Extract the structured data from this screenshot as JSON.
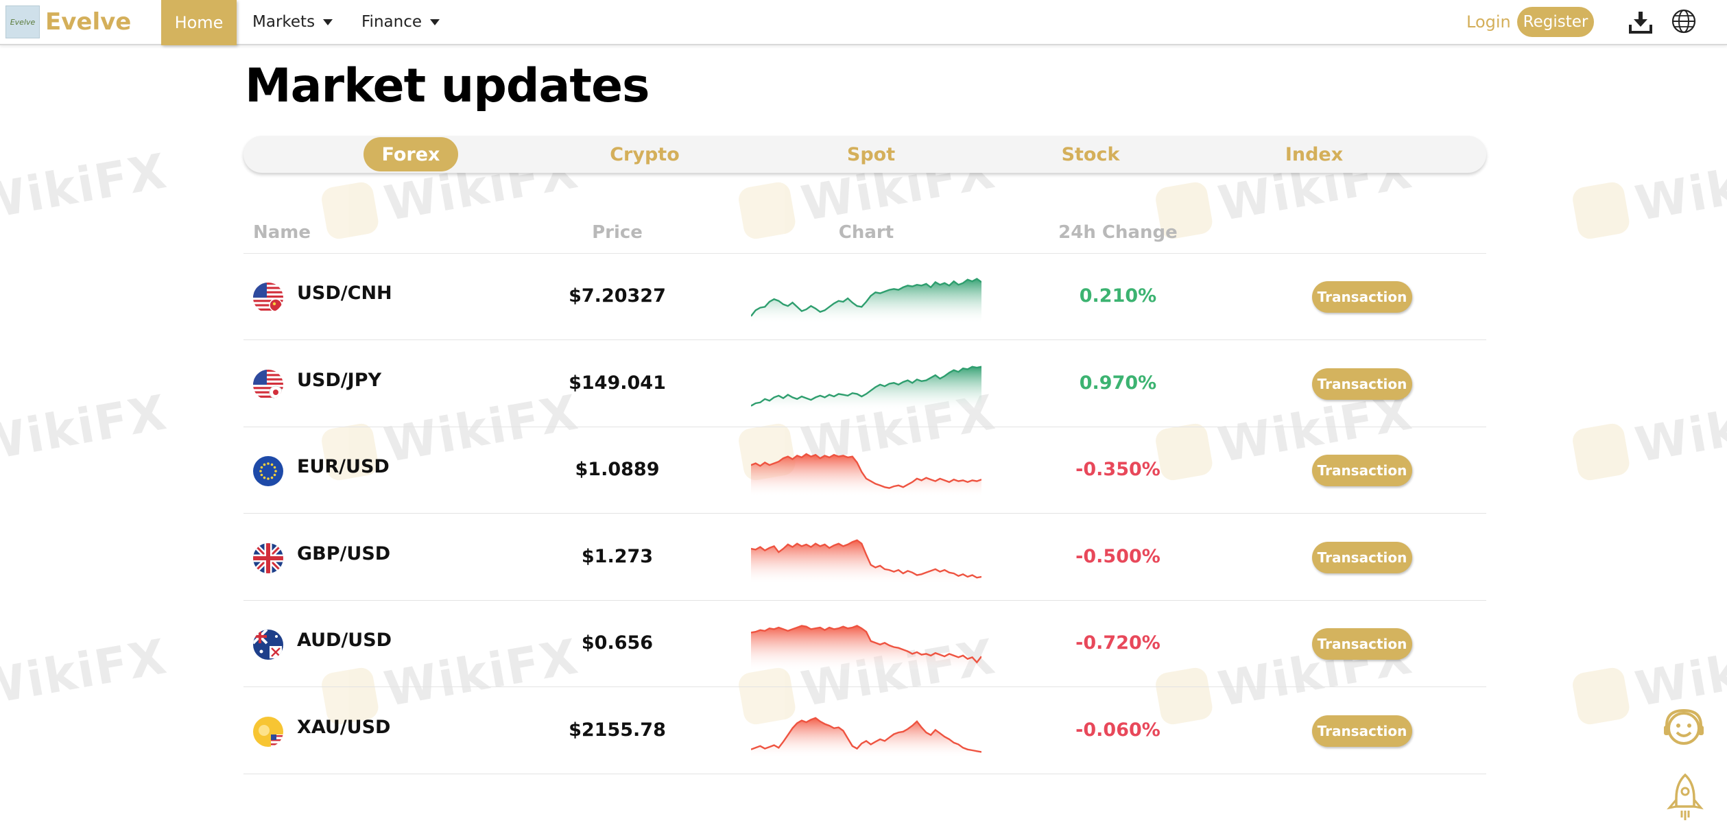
{
  "brand": {
    "name": "Evelve",
    "logo_text": "Evelve"
  },
  "nav": {
    "home": "Home",
    "markets": "Markets",
    "finance": "Finance",
    "login": "Login",
    "register": "Register"
  },
  "watermark": "WikiFX",
  "page_title": "Market updates",
  "tabs": [
    "Forex",
    "Crypto",
    "Spot",
    "Stock",
    "Index"
  ],
  "active_tab": "Forex",
  "table": {
    "headers": {
      "name": "Name",
      "price": "Price",
      "chart": "Chart",
      "change": "24h Change"
    },
    "button_label": "Transaction",
    "rows": [
      {
        "pair": "USD/CNH",
        "price": "$7.20327",
        "change": "0.210%",
        "direction": "up",
        "flag": "us-cn",
        "spark": [
          0.08,
          0.22,
          0.28,
          0.3,
          0.42,
          0.48,
          0.44,
          0.36,
          0.32,
          0.4,
          0.3,
          0.2,
          0.24,
          0.32,
          0.26,
          0.18,
          0.22,
          0.3,
          0.38,
          0.44,
          0.42,
          0.5,
          0.4,
          0.32,
          0.3,
          0.42,
          0.56,
          0.64,
          0.62,
          0.66,
          0.7,
          0.72,
          0.7,
          0.76,
          0.8,
          0.78,
          0.82,
          0.8,
          0.84,
          0.76,
          0.88,
          0.82,
          0.86,
          0.8,
          0.9,
          0.82,
          0.86,
          0.94,
          0.9,
          0.96,
          0.88
        ]
      },
      {
        "pair": "USD/JPY",
        "price": "$149.041",
        "change": "0.970%",
        "direction": "up",
        "flag": "us-jp",
        "spark": [
          0.02,
          0.08,
          0.1,
          0.18,
          0.14,
          0.22,
          0.26,
          0.2,
          0.28,
          0.22,
          0.18,
          0.24,
          0.2,
          0.16,
          0.22,
          0.26,
          0.22,
          0.28,
          0.24,
          0.3,
          0.28,
          0.26,
          0.32,
          0.3,
          0.24,
          0.3,
          0.38,
          0.46,
          0.52,
          0.48,
          0.54,
          0.56,
          0.52,
          0.58,
          0.62,
          0.56,
          0.64,
          0.6,
          0.62,
          0.68,
          0.74,
          0.66,
          0.72,
          0.8,
          0.86,
          0.82,
          0.9,
          0.88,
          0.94,
          0.92,
          0.94
        ]
      },
      {
        "pair": "EUR/USD",
        "price": "$1.0889",
        "change": "-0.350%",
        "direction": "down",
        "flag": "eu",
        "spark": [
          0.66,
          0.7,
          0.64,
          0.72,
          0.66,
          0.7,
          0.74,
          0.82,
          0.86,
          0.8,
          0.88,
          0.84,
          0.92,
          0.86,
          0.9,
          0.82,
          0.88,
          0.84,
          0.9,
          0.86,
          0.88,
          0.84,
          0.86,
          0.72,
          0.5,
          0.34,
          0.28,
          0.22,
          0.18,
          0.14,
          0.12,
          0.16,
          0.18,
          0.14,
          0.2,
          0.26,
          0.34,
          0.3,
          0.36,
          0.32,
          0.28,
          0.34,
          0.3,
          0.26,
          0.32,
          0.28,
          0.3,
          0.26,
          0.3,
          0.28,
          0.32
        ]
      },
      {
        "pair": "GBP/USD",
        "price": "$1.273",
        "change": "-0.500%",
        "direction": "down",
        "flag": "gb",
        "spark": [
          0.74,
          0.72,
          0.78,
          0.7,
          0.76,
          0.8,
          0.66,
          0.74,
          0.84,
          0.78,
          0.86,
          0.8,
          0.84,
          0.78,
          0.86,
          0.8,
          0.84,
          0.76,
          0.82,
          0.86,
          0.8,
          0.84,
          0.9,
          0.94,
          0.86,
          0.6,
          0.36,
          0.3,
          0.34,
          0.26,
          0.24,
          0.2,
          0.24,
          0.16,
          0.22,
          0.18,
          0.12,
          0.14,
          0.18,
          0.22,
          0.26,
          0.2,
          0.24,
          0.18,
          0.16,
          0.1,
          0.14,
          0.08,
          0.12,
          0.06,
          0.08
        ]
      },
      {
        "pair": "AUD/USD",
        "price": "$0.656",
        "change": "-0.720%",
        "direction": "down",
        "flag": "au",
        "spark": [
          0.8,
          0.82,
          0.86,
          0.84,
          0.9,
          0.88,
          0.92,
          0.88,
          0.84,
          0.88,
          0.92,
          0.96,
          0.94,
          0.88,
          0.9,
          0.92,
          0.86,
          0.92,
          0.88,
          0.9,
          0.94,
          0.9,
          0.92,
          0.96,
          0.9,
          0.82,
          0.6,
          0.56,
          0.52,
          0.56,
          0.5,
          0.46,
          0.44,
          0.4,
          0.36,
          0.3,
          0.34,
          0.28,
          0.3,
          0.26,
          0.32,
          0.28,
          0.24,
          0.3,
          0.26,
          0.22,
          0.26,
          0.18,
          0.22,
          0.1,
          0.24
        ]
      },
      {
        "pair": "XAU/USD",
        "price": "$2155.78",
        "change": "-0.060%",
        "direction": "down",
        "flag": "xau",
        "spark": [
          0.1,
          0.14,
          0.18,
          0.12,
          0.16,
          0.2,
          0.14,
          0.28,
          0.44,
          0.6,
          0.72,
          0.78,
          0.74,
          0.8,
          0.84,
          0.76,
          0.7,
          0.66,
          0.6,
          0.62,
          0.54,
          0.36,
          0.18,
          0.12,
          0.24,
          0.3,
          0.22,
          0.28,
          0.34,
          0.3,
          0.38,
          0.46,
          0.5,
          0.52,
          0.58,
          0.66,
          0.76,
          0.62,
          0.5,
          0.44,
          0.56,
          0.48,
          0.4,
          0.34,
          0.26,
          0.22,
          0.14,
          0.1,
          0.08,
          0.06,
          0.04
        ]
      }
    ]
  },
  "colors": {
    "gold": "#d4b35e",
    "up": "#2e9e6e",
    "down": "#ee5340"
  }
}
